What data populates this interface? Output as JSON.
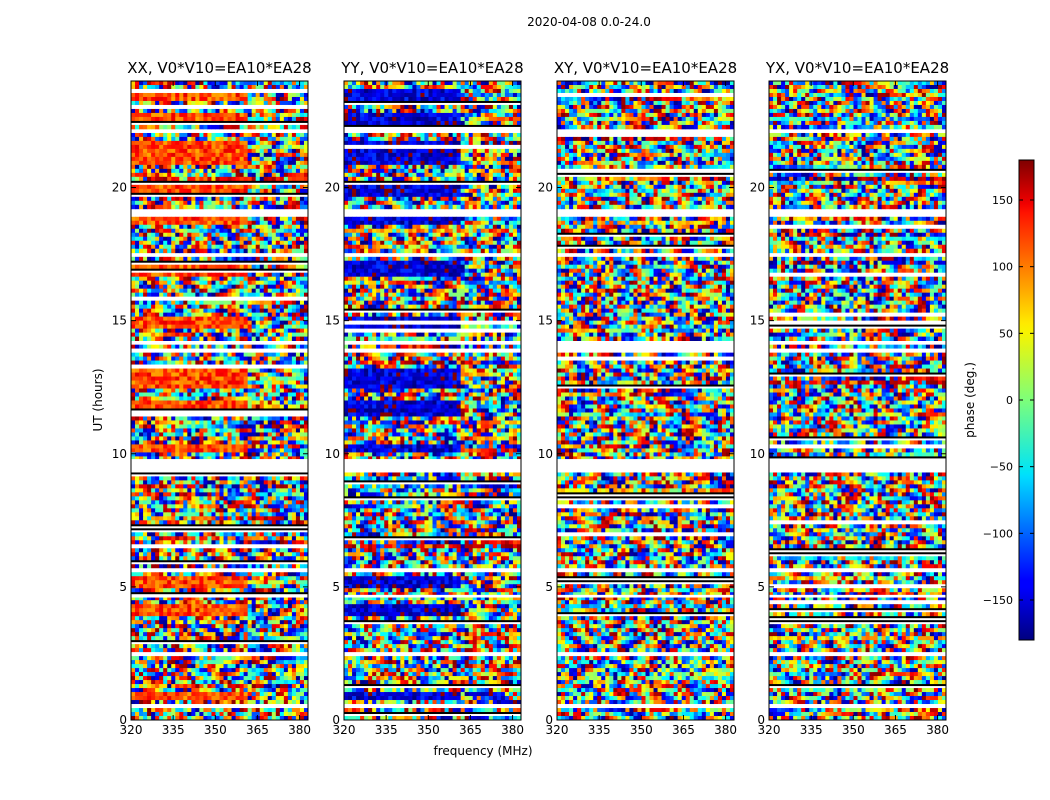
{
  "chart_data": {
    "type": "heatmap",
    "suptitle": "2020-04-08 0.0-24.0",
    "xlabel": "frequency (MHz)",
    "ylabel": "UT (hours)",
    "xlim": [
      320,
      383
    ],
    "ylim": [
      0,
      24
    ],
    "xticks": [
      320,
      335,
      350,
      365,
      380
    ],
    "yticks": [
      0,
      5,
      10,
      15,
      20
    ],
    "colormap": "jet",
    "panels": [
      {
        "title": "XX, V0*V10=EA10*EA28",
        "coherent_phase": 110,
        "coherent_until_mhz": 362
      },
      {
        "title": "YY, V0*V10=EA10*EA28",
        "coherent_phase": -150,
        "coherent_until_mhz": 362
      },
      {
        "title": "XY, V0*V10=EA10*EA28",
        "coherent_phase": null,
        "coherent_until_mhz": null
      },
      {
        "title": "YX, V0*V10=EA10*EA28",
        "coherent_phase": null,
        "coherent_until_mhz": null
      }
    ],
    "colorbar": {
      "label": "phase (deg.)",
      "range": [
        -180,
        180
      ],
      "ticks": [
        150,
        100,
        50,
        0,
        -50,
        -100,
        -150
      ],
      "tick_labels": [
        "150",
        "100",
        "50",
        "0",
        "−50",
        "−100",
        "−150"
      ]
    },
    "coherent_bands_ut": [
      [
        0.8,
        1.0
      ],
      [
        3.9,
        4.4
      ],
      [
        4.9,
        5.4
      ],
      [
        10.0,
        10.4
      ],
      [
        11.4,
        12.0
      ],
      [
        12.5,
        13.2
      ],
      [
        14.7,
        15.1
      ],
      [
        16.7,
        17.2
      ],
      [
        18.6,
        19.1
      ],
      [
        19.7,
        20.3
      ],
      [
        20.9,
        21.8
      ],
      [
        22.4,
        22.8
      ],
      [
        23.2,
        23.7
      ]
    ],
    "blank_gaps_ut": [
      [
        0.45,
        0.6
      ],
      [
        2.45,
        2.55
      ],
      [
        4.6,
        4.7
      ],
      [
        5.6,
        5.7
      ],
      [
        9.3,
        9.8
      ],
      [
        13.8,
        13.95
      ],
      [
        14.1,
        14.2
      ],
      [
        17.4,
        17.5
      ],
      [
        18.95,
        19.15
      ],
      [
        22.05,
        22.15
      ]
    ]
  }
}
